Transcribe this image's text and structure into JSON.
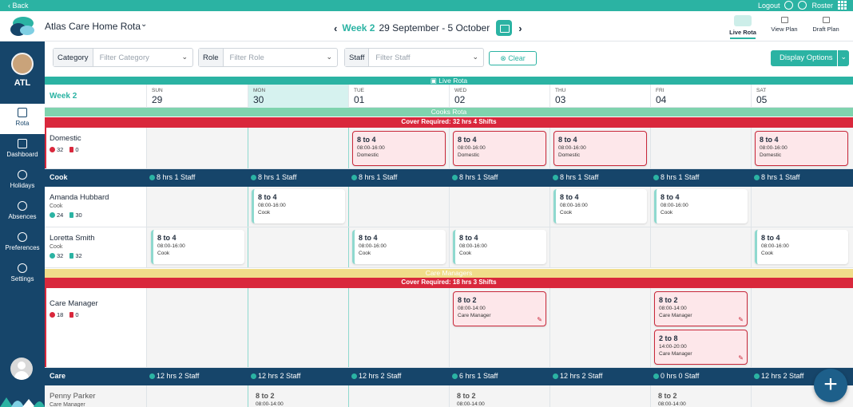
{
  "topbar": {
    "back": "‹ Back",
    "logout": "Logout",
    "roster": "Roster"
  },
  "header": {
    "title": "Atlas Care Home Rota",
    "week": "Week 2",
    "date_range": "29 September - 5 October",
    "views": [
      "Live Rota",
      "View Plan",
      "Draft Plan"
    ]
  },
  "sidebar": {
    "org": "ATL",
    "items": [
      "Rota",
      "Dashboard",
      "Holidays",
      "Absences",
      "Preferences",
      "Settings"
    ]
  },
  "filters": {
    "category_label": "Category",
    "category_placeholder": "Filter Category",
    "role_label": "Role",
    "role_placeholder": "Filter Role",
    "staff_label": "Staff",
    "staff_placeholder": "Filter Staff",
    "clear": "Clear",
    "display_options": "Display Options"
  },
  "rota": {
    "live_band": "Live Rota",
    "week_label": "Week 2",
    "days": [
      {
        "name": "SUN",
        "num": "29"
      },
      {
        "name": "MON",
        "num": "30"
      },
      {
        "name": "TUE",
        "num": "01"
      },
      {
        "name": "WED",
        "num": "02"
      },
      {
        "name": "THU",
        "num": "03"
      },
      {
        "name": "FRI",
        "num": "04"
      },
      {
        "name": "SAT",
        "num": "05"
      }
    ],
    "cooks_band": "Cooks Rota",
    "cooks_cover": "Cover Required:  32 hrs  4 Shifts",
    "domestic": {
      "name": "Domestic",
      "hrs": "32",
      "shifts": "0"
    },
    "domestic_shift": {
      "title": "8 to 4",
      "hours": "08:00-16:00",
      "role": "Domestic"
    },
    "cook_summary": {
      "label": "Cook",
      "cells": [
        "8 hrs  1 Staff",
        "8 hrs  1 Staff",
        "8 hrs  1 Staff",
        "8 hrs  1 Staff",
        "8 hrs  1 Staff",
        "8 hrs  1 Staff",
        "8 hrs  1 Staff"
      ]
    },
    "amanda": {
      "name": "Amanda Hubbard",
      "role": "Cook",
      "hrs": "24",
      "shifts": "30"
    },
    "loretta": {
      "name": "Loretta Smith",
      "role": "Cook",
      "hrs": "32",
      "shifts": "32"
    },
    "cook_shift": {
      "title": "8 to 4",
      "hours": "08:00-16:00",
      "role": "Cook"
    },
    "care_band": "Care Managers",
    "care_cover": "Cover Required:  18 hrs  3 Shifts",
    "care_manager": {
      "name": "Care Manager",
      "hrs": "18",
      "shifts": "0"
    },
    "cm_shift_1": {
      "title": "8 to 2",
      "hours": "08:00-14:00",
      "role": "Care Manager"
    },
    "cm_shift_2": {
      "title": "2 to 8",
      "hours": "14:00-20:00",
      "role": "Care Manager"
    },
    "care_summary": {
      "label": "Care",
      "cells": [
        "12 hrs  2 Staff",
        "12 hrs  2 Staff",
        "12 hrs  2 Staff",
        "6 hrs  1 Staff",
        "12 hrs  2 Staff",
        "0 hrs  0 Staff",
        "12 hrs  2 Staff"
      ]
    },
    "penny": {
      "name": "Penny Parker",
      "role": "Care Manager"
    },
    "penny_shift": {
      "title": "8 to 2",
      "hours": "08:00-14:00"
    }
  },
  "fab": "+"
}
